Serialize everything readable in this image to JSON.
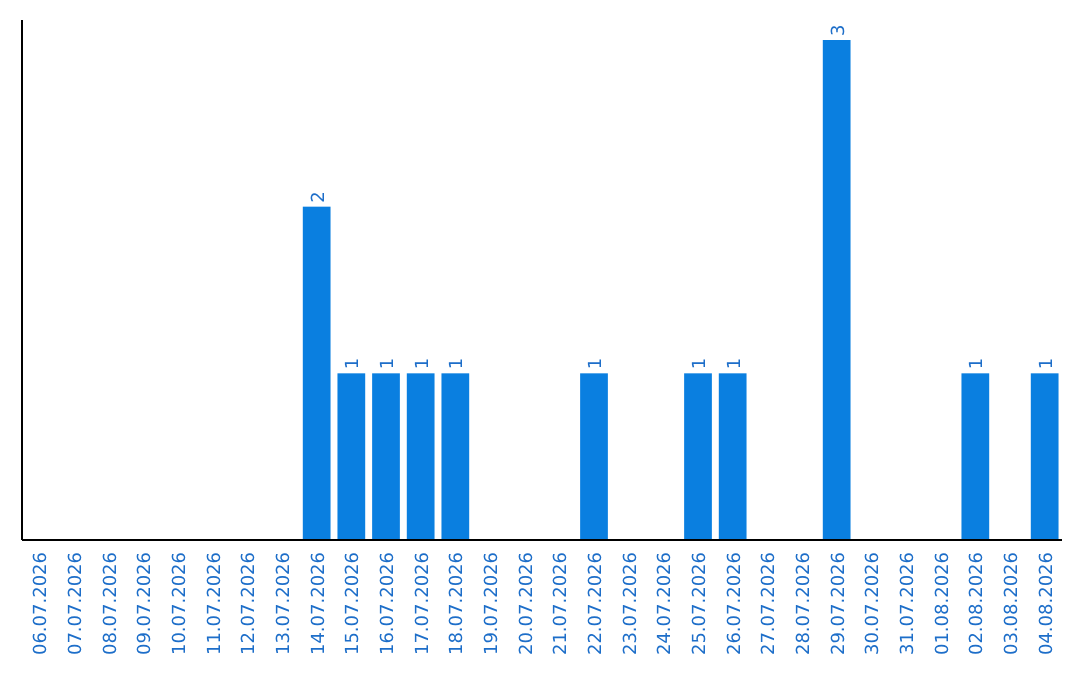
{
  "chart_data": {
    "type": "bar",
    "categories": [
      "06.07.2026",
      "07.07.2026",
      "08.07.2026",
      "09.07.2026",
      "10.07.2026",
      "11.07.2026",
      "12.07.2026",
      "13.07.2026",
      "14.07.2026",
      "15.07.2026",
      "16.07.2026",
      "17.07.2026",
      "18.07.2026",
      "19.07.2026",
      "20.07.2026",
      "21.07.2026",
      "22.07.2026",
      "23.07.2026",
      "24.07.2026",
      "25.07.2026",
      "26.07.2026",
      "27.07.2026",
      "28.07.2026",
      "29.07.2026",
      "30.07.2026",
      "31.07.2026",
      "01.08.2026",
      "02.08.2026",
      "03.08.2026",
      "04.08.2026"
    ],
    "values": [
      0,
      0,
      0,
      0,
      0,
      0,
      0,
      0,
      2,
      1,
      1,
      1,
      1,
      0,
      0,
      0,
      1,
      0,
      0,
      1,
      1,
      0,
      0,
      3,
      0,
      0,
      0,
      1,
      0,
      1
    ],
    "value_labels": [
      null,
      null,
      null,
      null,
      null,
      null,
      null,
      null,
      "2",
      "1",
      "1",
      "1",
      "1",
      null,
      null,
      null,
      "1",
      null,
      null,
      "1",
      "1",
      null,
      null,
      "3",
      null,
      null,
      null,
      "1",
      null,
      "1"
    ],
    "color": "#0a7fe0"
  }
}
